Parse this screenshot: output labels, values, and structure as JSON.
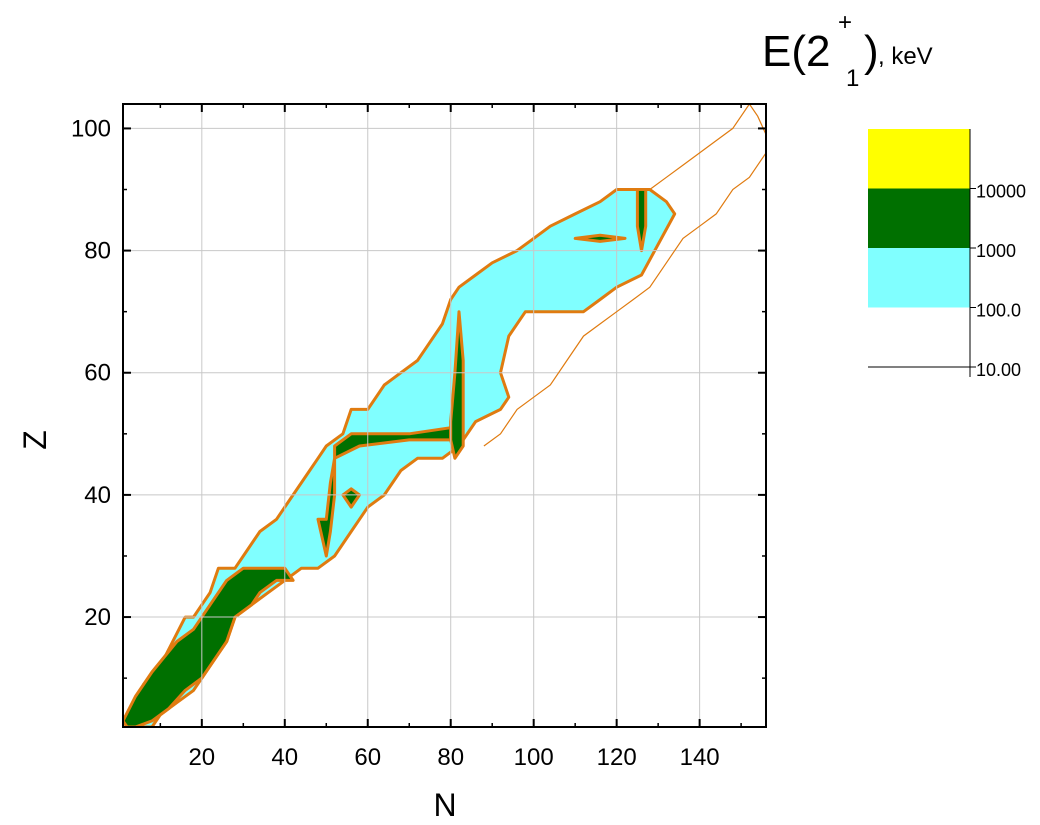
{
  "chart_data": {
    "type": "heatmap",
    "title": {
      "base": "E(2",
      "superscript": "+",
      "subscript": "1",
      "close": ")",
      "unit": ", keV"
    },
    "xlabel": "N",
    "ylabel": "Z",
    "xlim": [
      1,
      156
    ],
    "ylim": [
      2,
      104
    ],
    "xticks": [
      20,
      40,
      60,
      80,
      100,
      120,
      140
    ],
    "yticks": [
      20,
      40,
      60,
      80,
      100
    ],
    "grid": true,
    "colorbar": {
      "placement": "right",
      "levels": [
        {
          "from": 10000,
          "color": "#ffff00"
        },
        {
          "from": 1000,
          "to": 10000,
          "color": "#007000"
        },
        {
          "from": 100.0,
          "to": 1000,
          "color": "#80ffff"
        },
        {
          "from": 10.0,
          "to": 100.0,
          "color": "#ffffff"
        }
      ],
      "tick_labels": [
        "10000",
        "1000",
        "100.0",
        "10.00"
      ]
    },
    "contour_color": "#e07b10",
    "regions": [
      {
        "name": "outer-envelope",
        "fill": "#80ffff",
        "level": "100.0–1000",
        "outline": [
          [
            1,
            3
          ],
          [
            2,
            3
          ],
          [
            4,
            6
          ],
          [
            6,
            9
          ],
          [
            10,
            12
          ],
          [
            16,
            20
          ],
          [
            18,
            20
          ],
          [
            20,
            22
          ],
          [
            22,
            24
          ],
          [
            24,
            28
          ],
          [
            28,
            28
          ],
          [
            30,
            30
          ],
          [
            34,
            34
          ],
          [
            38,
            36
          ],
          [
            42,
            40
          ],
          [
            46,
            44
          ],
          [
            48,
            46
          ],
          [
            50,
            48
          ],
          [
            54,
            50
          ],
          [
            56,
            54
          ],
          [
            60,
            54
          ],
          [
            64,
            58
          ],
          [
            68,
            60
          ],
          [
            72,
            62
          ],
          [
            74,
            64
          ],
          [
            78,
            68
          ],
          [
            80,
            72
          ],
          [
            82,
            74
          ],
          [
            86,
            76
          ],
          [
            90,
            78
          ],
          [
            96,
            80
          ],
          [
            100,
            82
          ],
          [
            104,
            84
          ],
          [
            110,
            86
          ],
          [
            116,
            88
          ],
          [
            120,
            90
          ],
          [
            128,
            90
          ],
          [
            132,
            88
          ],
          [
            134,
            86
          ],
          [
            126,
            76
          ],
          [
            120,
            74
          ],
          [
            116,
            72
          ],
          [
            112,
            70
          ],
          [
            108,
            70
          ],
          [
            104,
            70
          ],
          [
            98,
            70
          ],
          [
            94,
            66
          ],
          [
            92,
            60
          ],
          [
            94,
            56
          ],
          [
            92,
            54
          ],
          [
            86,
            52
          ],
          [
            82,
            48
          ],
          [
            78,
            46
          ],
          [
            72,
            46
          ],
          [
            68,
            44
          ],
          [
            64,
            40
          ],
          [
            60,
            38
          ],
          [
            58,
            36
          ],
          [
            56,
            34
          ],
          [
            52,
            30
          ],
          [
            48,
            28
          ],
          [
            44,
            28
          ],
          [
            40,
            26
          ],
          [
            36,
            24
          ],
          [
            32,
            22
          ],
          [
            28,
            20
          ],
          [
            26,
            16
          ],
          [
            22,
            12
          ],
          [
            18,
            8
          ],
          [
            14,
            6
          ],
          [
            10,
            4
          ],
          [
            8,
            2
          ],
          [
            2,
            2
          ]
        ]
      },
      {
        "name": "light-shell-band",
        "fill": "#007000",
        "level": "1000–10000",
        "outline": [
          [
            1,
            3
          ],
          [
            4,
            7
          ],
          [
            8,
            11
          ],
          [
            14,
            16
          ],
          [
            18,
            18
          ],
          [
            22,
            22
          ],
          [
            26,
            26
          ],
          [
            30,
            28
          ],
          [
            36,
            28
          ],
          [
            40,
            28
          ],
          [
            42,
            26
          ],
          [
            38,
            26
          ],
          [
            34,
            24
          ],
          [
            32,
            22
          ],
          [
            28,
            20
          ],
          [
            26,
            16
          ],
          [
            24,
            14
          ],
          [
            20,
            10
          ],
          [
            16,
            8
          ],
          [
            12,
            5
          ],
          [
            8,
            3
          ],
          [
            4,
            2
          ],
          [
            2,
            2
          ]
        ]
      },
      {
        "name": "n50-line",
        "fill": "#007000",
        "level": "1000–10000",
        "outline": [
          [
            48,
            36
          ],
          [
            50,
            30
          ],
          [
            51,
            34
          ],
          [
            52,
            40
          ],
          [
            52,
            48
          ],
          [
            56,
            50
          ],
          [
            62,
            50
          ],
          [
            70,
            50
          ],
          [
            80,
            51
          ],
          [
            80,
            49
          ],
          [
            70,
            49
          ],
          [
            58,
            48
          ],
          [
            52,
            46
          ],
          [
            51,
            42
          ],
          [
            50,
            36
          ]
        ]
      },
      {
        "name": "z50-n82-cross",
        "fill": "#007000",
        "level": "1000–10000",
        "outline": [
          [
            80,
            52
          ],
          [
            81,
            60
          ],
          [
            82,
            70
          ],
          [
            83,
            62
          ],
          [
            83,
            54
          ],
          [
            83,
            48
          ],
          [
            81,
            46
          ],
          [
            80,
            49
          ]
        ]
      },
      {
        "name": "n126-line",
        "fill": "#007000",
        "level": "1000–10000",
        "outline": [
          [
            125,
            90
          ],
          [
            127,
            90
          ],
          [
            127,
            84
          ],
          [
            126,
            80
          ],
          [
            125,
            84
          ]
        ]
      },
      {
        "name": "zr-island",
        "fill": "#007000",
        "level": "1000–10000",
        "outline": [
          [
            54,
            40
          ],
          [
            56,
            41
          ],
          [
            58,
            40
          ],
          [
            56,
            38
          ]
        ]
      },
      {
        "name": "z82-island",
        "fill": "#007000",
        "level": "1000–10000",
        "outline": [
          [
            110,
            82
          ],
          [
            116,
            82.5
          ],
          [
            122,
            82
          ],
          [
            116,
            81.5
          ]
        ]
      }
    ],
    "open_contours": [
      {
        "name": "heavy-envelope",
        "points": [
          [
            124,
            90
          ],
          [
            128,
            90
          ],
          [
            132,
            92
          ],
          [
            136,
            94
          ],
          [
            140,
            96
          ],
          [
            144,
            98
          ],
          [
            148,
            100
          ],
          [
            152,
            104
          ],
          [
            154,
            102
          ],
          [
            156,
            99
          ],
          [
            156,
            96
          ],
          [
            152,
            92
          ],
          [
            148,
            90
          ],
          [
            144,
            86
          ],
          [
            140,
            84
          ],
          [
            136,
            82
          ],
          [
            132,
            78
          ],
          [
            128,
            74
          ],
          [
            124,
            72
          ],
          [
            120,
            70
          ],
          [
            116,
            68
          ],
          [
            112,
            66
          ],
          [
            108,
            62
          ],
          [
            104,
            58
          ],
          [
            100,
            56
          ],
          [
            96,
            54
          ],
          [
            92,
            50
          ],
          [
            88,
            48
          ]
        ]
      }
    ]
  }
}
